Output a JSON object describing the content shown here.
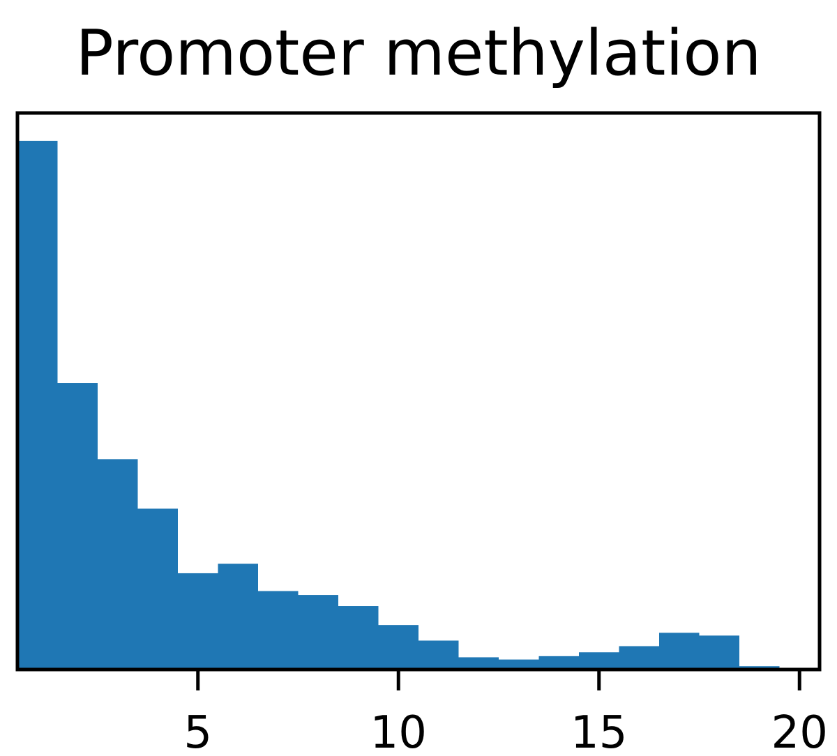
{
  "chart_data": {
    "type": "bar",
    "title": "Promoter methylation",
    "xlabel": "",
    "ylabel": "",
    "x_bin_edges": [
      0.5,
      1.5,
      2.5,
      3.5,
      4.5,
      5.5,
      6.5,
      7.5,
      8.5,
      9.5,
      10.5,
      11.5,
      12.5,
      13.5,
      14.5,
      15.5,
      16.5,
      17.5,
      18.5,
      19.5
    ],
    "values": [
      0.95,
      0.515,
      0.378,
      0.289,
      0.173,
      0.19,
      0.141,
      0.134,
      0.114,
      0.08,
      0.052,
      0.022,
      0.018,
      0.024,
      0.031,
      0.042,
      0.066,
      0.061,
      0.006
    ],
    "xlim": [
      0.5,
      20.5
    ],
    "ylim": [
      0,
      1.0
    ],
    "x_ticks": [
      5,
      10,
      15,
      20
    ],
    "x_tick_labels": [
      "5",
      "10",
      "15",
      "20"
    ],
    "y_ticks_visible": false,
    "grid": false,
    "legend": "none",
    "bar_color": "#1f77b4"
  }
}
